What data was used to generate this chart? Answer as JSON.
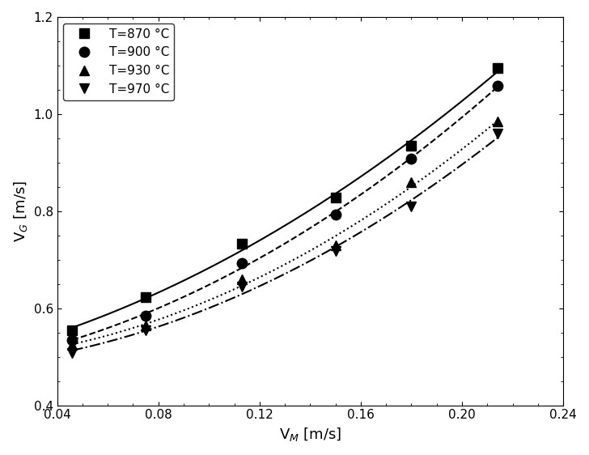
{
  "series": [
    {
      "label": "T=870 °C",
      "x": [
        0.046,
        0.075,
        0.113,
        0.15,
        0.18,
        0.214
      ],
      "y": [
        0.555,
        0.623,
        0.733,
        0.828,
        0.935,
        1.095
      ],
      "marker": "s",
      "linestyle": "-",
      "color": "black"
    },
    {
      "label": "T=900 °C",
      "x": [
        0.046,
        0.075,
        0.113,
        0.15,
        0.18,
        0.214
      ],
      "y": [
        0.535,
        0.585,
        0.693,
        0.793,
        0.908,
        1.058
      ],
      "marker": "o",
      "linestyle": "--",
      "color": "black"
    },
    {
      "label": "T=930 °C",
      "x": [
        0.046,
        0.075,
        0.113,
        0.15,
        0.18,
        0.214
      ],
      "y": [
        0.525,
        0.565,
        0.66,
        0.73,
        0.86,
        0.985
      ],
      "marker": "^",
      "linestyle": ":",
      "color": "black"
    },
    {
      "label": "T=970 °C",
      "x": [
        0.046,
        0.075,
        0.113,
        0.15,
        0.18,
        0.214
      ],
      "y": [
        0.508,
        0.555,
        0.645,
        0.718,
        0.81,
        0.96
      ],
      "marker": "v",
      "linestyle": "-.",
      "color": "black"
    }
  ],
  "xlabel": "V$_M$ [m/s]",
  "ylabel": "V$_G$ [m/s]",
  "xlim": [
    0.04,
    0.24
  ],
  "ylim": [
    0.4,
    1.2
  ],
  "xticks": [
    0.04,
    0.08,
    0.12,
    0.16,
    0.2,
    0.24
  ],
  "yticks": [
    0.4,
    0.6,
    0.8,
    1.0,
    1.2
  ],
  "marker_size": 9,
  "linewidth": 1.5,
  "figsize": [
    7.28,
    5.62
  ],
  "dpi": 100
}
